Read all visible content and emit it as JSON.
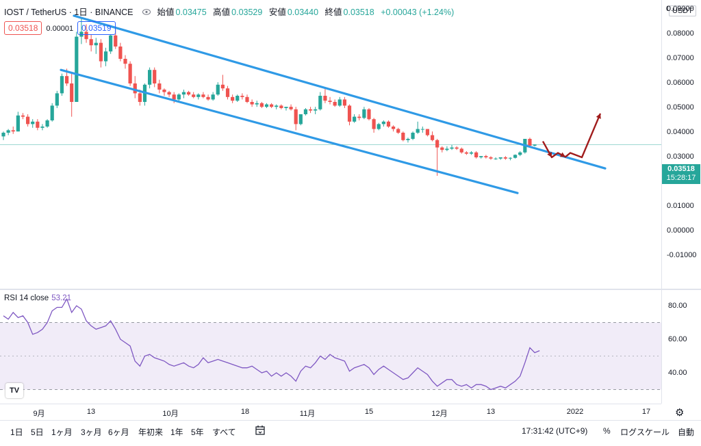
{
  "header": {
    "symbol": "IOST / TetherUS · 1日 · BINANCE",
    "ohlc": [
      {
        "k": "始値",
        "v": "0.03475"
      },
      {
        "k": "高値",
        "v": "0.03529"
      },
      {
        "k": "安値",
        "v": "0.03440"
      },
      {
        "k": "終値",
        "v": "0.03518"
      }
    ],
    "change": "+0.00043 (+1.24%)",
    "sell_price": "0.03518",
    "spread": "0.00001",
    "buy_price": "0.03519"
  },
  "price_scale": {
    "currency": "USDT",
    "top_label": "0",
    "ticks": [
      "0.09000",
      "0.08000",
      "0.07000",
      "0.06000",
      "0.05000",
      "0.04000",
      "0.03000",
      "0.02000",
      "0.01000",
      "0.00000",
      "-0.01000"
    ],
    "last_price": "0.03518",
    "countdown": "15:28:17"
  },
  "rsi": {
    "label": "RSI 14 close",
    "value": "53.21",
    "ticks": [
      "80.00",
      "60.00",
      "40.00"
    ]
  },
  "time_axis": [
    "9月",
    "13",
    "10月",
    "18",
    "11月",
    "15",
    "12月",
    "13",
    "2022",
    "17"
  ],
  "bottom_bar": {
    "timeframes": [
      "1日",
      "5日",
      "1ヶ月",
      "3ヶ月",
      "6ヶ月",
      "年初来",
      "1年",
      "5年",
      "すべて"
    ],
    "clock": "17:31:42 (UTC+9)",
    "percent": "%",
    "log_scale": "ログスケール",
    "auto": "自動"
  },
  "colors": {
    "up": "#26a69a",
    "down": "#ef5350",
    "channel": "#2f9ae6",
    "arrow": "#a01c1c",
    "rsi_line": "#7e57c2",
    "rsi_band": "#ede7f6"
  },
  "icons": [
    "eye-icon",
    "settings-gear-icon",
    "date-range-icon",
    "tradingview-logo"
  ],
  "chart_data": [
    {
      "type": "candlestick",
      "title": "IOST / TetherUS · 1日 · BINANCE",
      "ylim": [
        -0.01,
        0.09
      ],
      "grid": false,
      "candles": [
        [
          0.0385,
          0.0405,
          0.037,
          0.04
        ],
        [
          0.04,
          0.0415,
          0.039,
          0.041
        ],
        [
          0.041,
          0.0425,
          0.0395,
          0.0405
        ],
        [
          0.0405,
          0.0485,
          0.0405,
          0.047
        ],
        [
          0.047,
          0.048,
          0.0455,
          0.0465
        ],
        [
          0.0465,
          0.0475,
          0.0425,
          0.0435
        ],
        [
          0.0435,
          0.0455,
          0.042,
          0.0445
        ],
        [
          0.0445,
          0.0455,
          0.041,
          0.042
        ],
        [
          0.042,
          0.0435,
          0.041,
          0.0425
        ],
        [
          0.0425,
          0.0455,
          0.042,
          0.045
        ],
        [
          0.045,
          0.052,
          0.0445,
          0.051
        ],
        [
          0.051,
          0.057,
          0.05,
          0.056
        ],
        [
          0.056,
          0.064,
          0.055,
          0.063
        ],
        [
          0.063,
          0.066,
          0.059,
          0.06
        ],
        [
          0.06,
          0.064,
          0.0465,
          0.0525
        ],
        [
          0.0525,
          0.081,
          0.0525,
          0.079
        ],
        [
          0.079,
          0.087,
          0.076,
          0.081
        ],
        [
          0.081,
          0.084,
          0.0765,
          0.078
        ],
        [
          0.078,
          0.08,
          0.073,
          0.0755
        ],
        [
          0.0755,
          0.0785,
          0.072,
          0.0765
        ],
        [
          0.0765,
          0.078,
          0.0665,
          0.069
        ],
        [
          0.069,
          0.0745,
          0.067,
          0.073
        ],
        [
          0.073,
          0.08,
          0.072,
          0.0795
        ],
        [
          0.0795,
          0.082,
          0.074,
          0.075
        ],
        [
          0.075,
          0.0765,
          0.069,
          0.07
        ],
        [
          0.07,
          0.0715,
          0.066,
          0.068
        ],
        [
          0.068,
          0.069,
          0.059,
          0.06
        ],
        [
          0.06,
          0.063,
          0.054,
          0.056
        ],
        [
          0.056,
          0.0575,
          0.051,
          0.0525
        ],
        [
          0.0525,
          0.06,
          0.051,
          0.0595
        ],
        [
          0.0595,
          0.0665,
          0.058,
          0.0655
        ],
        [
          0.0655,
          0.0665,
          0.0585,
          0.06
        ],
        [
          0.06,
          0.0615,
          0.056,
          0.0575
        ],
        [
          0.0575,
          0.058,
          0.055,
          0.0565
        ],
        [
          0.0565,
          0.057,
          0.0545,
          0.0555
        ],
        [
          0.0555,
          0.0565,
          0.052,
          0.0535
        ],
        [
          0.0535,
          0.056,
          0.0525,
          0.0555
        ],
        [
          0.0555,
          0.0575,
          0.054,
          0.0565
        ],
        [
          0.0565,
          0.057,
          0.055,
          0.0555
        ],
        [
          0.0555,
          0.0565,
          0.054,
          0.0545
        ],
        [
          0.0545,
          0.056,
          0.0535,
          0.0555
        ],
        [
          0.0555,
          0.0565,
          0.054,
          0.0545
        ],
        [
          0.0545,
          0.0555,
          0.053,
          0.0535
        ],
        [
          0.0535,
          0.0565,
          0.053,
          0.0555
        ],
        [
          0.0555,
          0.0605,
          0.055,
          0.0595
        ],
        [
          0.0595,
          0.0635,
          0.057,
          0.058
        ],
        [
          0.058,
          0.059,
          0.0535,
          0.0545
        ],
        [
          0.0545,
          0.0555,
          0.052,
          0.053
        ],
        [
          0.053,
          0.0555,
          0.0525,
          0.055
        ],
        [
          0.055,
          0.056,
          0.0535,
          0.0545
        ],
        [
          0.0545,
          0.0555,
          0.052,
          0.0525
        ],
        [
          0.0525,
          0.0535,
          0.0505,
          0.0515
        ],
        [
          0.0515,
          0.053,
          0.0505,
          0.052
        ],
        [
          0.052,
          0.0525,
          0.05,
          0.0505
        ],
        [
          0.0505,
          0.052,
          0.05,
          0.0515
        ],
        [
          0.0515,
          0.052,
          0.05,
          0.0505
        ],
        [
          0.0505,
          0.0515,
          0.0495,
          0.051
        ],
        [
          0.051,
          0.0515,
          0.0495,
          0.05
        ],
        [
          0.05,
          0.0505,
          0.049,
          0.0505
        ],
        [
          0.0505,
          0.0515,
          0.049,
          0.0495
        ],
        [
          0.0495,
          0.0505,
          0.041,
          0.0435
        ],
        [
          0.0435,
          0.0475,
          0.043,
          0.0475
        ],
        [
          0.0475,
          0.05,
          0.047,
          0.0495
        ],
        [
          0.0495,
          0.0505,
          0.048,
          0.049
        ],
        [
          0.049,
          0.0505,
          0.0475,
          0.0495
        ],
        [
          0.0495,
          0.0565,
          0.049,
          0.055
        ],
        [
          0.055,
          0.058,
          0.052,
          0.053
        ],
        [
          0.053,
          0.0545,
          0.0515,
          0.0525
        ],
        [
          0.0525,
          0.0535,
          0.0505,
          0.051
        ],
        [
          0.051,
          0.0545,
          0.0505,
          0.0535
        ],
        [
          0.0535,
          0.0545,
          0.05,
          0.051
        ],
        [
          0.051,
          0.0515,
          0.043,
          0.0445
        ],
        [
          0.0445,
          0.0475,
          0.044,
          0.0465
        ],
        [
          0.0465,
          0.0475,
          0.045,
          0.046
        ],
        [
          0.046,
          0.0505,
          0.0455,
          0.0495
        ],
        [
          0.0495,
          0.05,
          0.045,
          0.0455
        ],
        [
          0.0455,
          0.046,
          0.04,
          0.0415
        ],
        [
          0.0415,
          0.044,
          0.041,
          0.0435
        ],
        [
          0.0435,
          0.045,
          0.0425,
          0.0445
        ],
        [
          0.0445,
          0.045,
          0.042,
          0.0425
        ],
        [
          0.0425,
          0.043,
          0.0405,
          0.0415
        ],
        [
          0.0415,
          0.042,
          0.0395,
          0.04
        ],
        [
          0.04,
          0.0405,
          0.0365,
          0.037
        ],
        [
          0.037,
          0.038,
          0.036,
          0.0375
        ],
        [
          0.0375,
          0.0405,
          0.037,
          0.04
        ],
        [
          0.04,
          0.0445,
          0.0395,
          0.0415
        ],
        [
          0.0415,
          0.0425,
          0.04,
          0.0415
        ],
        [
          0.0415,
          0.0415,
          0.0385,
          0.039
        ],
        [
          0.039,
          0.0405,
          0.0365,
          0.037
        ],
        [
          0.037,
          0.0375,
          0.0225,
          0.034
        ],
        [
          0.034,
          0.0345,
          0.032,
          0.033
        ],
        [
          0.033,
          0.0345,
          0.0325,
          0.0335
        ],
        [
          0.0335,
          0.035,
          0.033,
          0.034
        ],
        [
          0.034,
          0.0345,
          0.033,
          0.0335
        ],
        [
          0.0335,
          0.034,
          0.0315,
          0.032
        ],
        [
          0.032,
          0.0325,
          0.031,
          0.0315
        ],
        [
          0.0315,
          0.0325,
          0.031,
          0.032
        ],
        [
          0.032,
          0.0325,
          0.0295,
          0.03
        ],
        [
          0.03,
          0.0305,
          0.0295,
          0.0305
        ],
        [
          0.0305,
          0.031,
          0.0295,
          0.03
        ],
        [
          0.03,
          0.0305,
          0.029,
          0.0295
        ],
        [
          0.0295,
          0.03,
          0.029,
          0.0295
        ],
        [
          0.0295,
          0.03,
          0.029,
          0.03
        ],
        [
          0.03,
          0.0305,
          0.029,
          0.0295
        ],
        [
          0.0295,
          0.03,
          0.0288,
          0.0298
        ],
        [
          0.0298,
          0.0312,
          0.0295,
          0.031
        ],
        [
          0.031,
          0.0325,
          0.0305,
          0.032
        ],
        [
          0.032,
          0.0375,
          0.0315,
          0.0375
        ],
        [
          0.0375,
          0.038,
          0.0345,
          0.03475
        ],
        [
          0.03475,
          0.03529,
          0.0344,
          0.03518
        ]
      ],
      "channel_upper": [
        [
          0,
          0.0875
        ],
        [
          1,
          0.0255
        ]
      ],
      "channel_lower": [
        [
          0,
          0.0655
        ],
        [
          1,
          0.0155
        ]
      ],
      "projection_arrow": [
        0.0365,
        0.03,
        0.0318,
        0.0302,
        0.0318,
        0.03,
        0.0478
      ]
    },
    {
      "type": "line",
      "title": "RSI 14 close",
      "ylim": [
        25,
        90
      ],
      "band": [
        30,
        70
      ],
      "midline": 50,
      "series": [
        {
          "name": "RSI 14 close",
          "values": [
            74,
            72,
            76,
            73,
            74,
            70,
            63,
            64,
            66,
            70,
            77,
            79,
            79,
            84,
            76,
            80,
            78,
            71,
            68,
            66,
            67,
            68,
            71,
            66,
            60,
            58,
            56,
            47,
            44,
            50,
            51,
            49,
            48,
            47,
            45,
            44,
            45,
            46,
            44,
            43,
            45,
            49,
            46,
            47,
            48,
            47,
            46,
            45,
            44,
            43,
            43,
            44,
            42,
            40,
            41,
            38,
            40,
            38,
            40,
            38,
            35,
            41,
            44,
            43,
            46,
            50,
            48,
            51,
            49,
            48,
            47,
            41,
            43,
            44,
            45,
            43,
            39,
            42,
            44,
            42,
            40,
            38,
            36,
            37,
            40,
            43,
            41,
            39,
            35,
            32,
            34,
            36,
            36,
            33,
            32,
            33,
            31,
            33,
            33,
            32,
            30,
            31,
            32,
            31,
            33,
            35,
            38,
            46,
            55,
            52,
            53.21
          ]
        }
      ]
    }
  ]
}
